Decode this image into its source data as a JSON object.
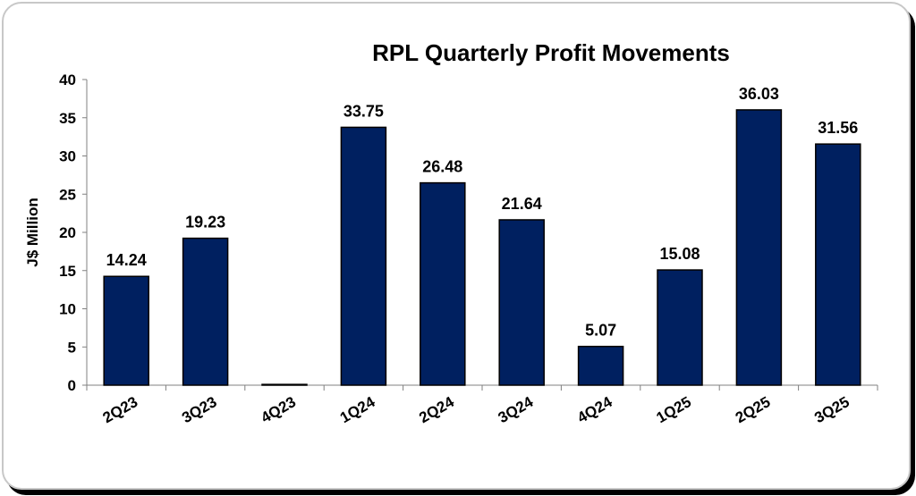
{
  "chart_data": {
    "type": "bar",
    "title": "RPL Quarterly Profit Movements",
    "xlabel": "",
    "ylabel": "J$ Million",
    "ylim": [
      0,
      40
    ],
    "yticks": [
      0,
      5,
      10,
      15,
      20,
      25,
      30,
      35,
      40
    ],
    "categories": [
      "2Q23",
      "3Q23",
      "4Q23",
      "1Q24",
      "2Q24",
      "3Q24",
      "4Q24",
      "1Q25",
      "2Q25",
      "3Q25"
    ],
    "values": [
      14.24,
      19.23,
      0.1,
      33.75,
      26.48,
      21.64,
      5.07,
      15.08,
      36.03,
      31.56
    ],
    "data_labels": [
      "14.24",
      "19.23",
      "",
      "33.75",
      "26.48",
      "21.64",
      "5.07",
      "15.08",
      "36.03",
      "31.56"
    ],
    "grid": false,
    "legend": "none",
    "colors": {
      "bar": "#002060",
      "bar_edge": "#000000"
    }
  }
}
